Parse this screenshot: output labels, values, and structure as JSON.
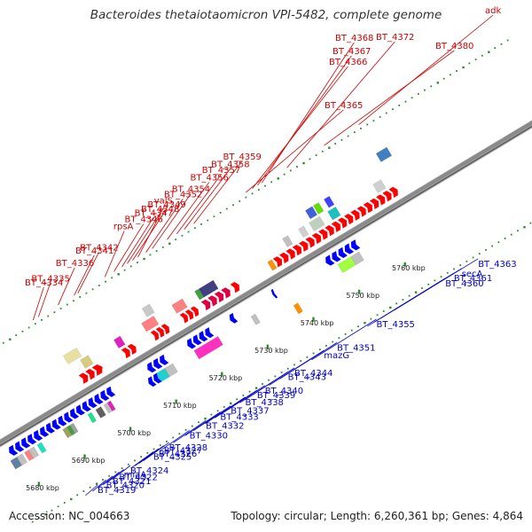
{
  "title": "Bacteroides thetaiotaomicron VPI-5482, complete genome",
  "footer": {
    "accession": "Accession: NC_004663",
    "summary": "Topology: circular; Length: 6,260,361 bp; Genes: 4,864"
  },
  "colors": {
    "forward_label": "#d00000",
    "reverse_label": "#0000c8",
    "backbone": "#8a8a8a",
    "tick": "#2f8a2f"
  },
  "kbp_ticks": [
    "5680 kbp",
    "5690 kbp",
    "5700 kbp",
    "5710 kbp",
    "5720 kbp",
    "5730 kbp",
    "5740 kbp",
    "5750 kbp",
    "5760 kbp"
  ],
  "forward_labels": [
    {
      "text": "BT_4334",
      "anchor": 0.148
    },
    {
      "text": "BT_4335",
      "anchor": 0.158
    },
    {
      "text": "BT_4336",
      "anchor": 0.195
    },
    {
      "text": "BT_4341",
      "anchor": 0.225
    },
    {
      "text": "BT_4342",
      "anchor": 0.232
    },
    {
      "text": "rpsA",
      "anchor": 0.283
    },
    {
      "text": "BT_4346",
      "anchor": 0.3
    },
    {
      "text": "BT_4347",
      "anchor": 0.315
    },
    {
      "text": "BT_4348",
      "anchor": 0.325
    },
    {
      "text": "BT_4349",
      "anchor": 0.335
    },
    {
      "text": "valS",
      "anchor": 0.345
    },
    {
      "text": "BT_4352",
      "anchor": 0.36
    },
    {
      "text": "BT_4354",
      "anchor": 0.372
    },
    {
      "text": "BT_4356",
      "anchor": 0.4
    },
    {
      "text": "BT_4357",
      "anchor": 0.418
    },
    {
      "text": "BT_4358",
      "anchor": 0.432
    },
    {
      "text": "BT_4359",
      "anchor": 0.45
    },
    {
      "text": "BT_4365",
      "anchor": 0.548
    },
    {
      "text": "BT_4366",
      "anchor": 0.56
    },
    {
      "text": "BT_4367",
      "anchor": 0.57
    },
    {
      "text": "BT_4368",
      "anchor": 0.578
    },
    {
      "text": "BT_4372",
      "anchor": 0.625
    },
    {
      "text": "BT_4380",
      "anchor": 0.695
    },
    {
      "text": "adk",
      "anchor": 0.76
    }
  ],
  "reverse_labels": [
    {
      "text": "BT_4319",
      "anchor": 0.075
    },
    {
      "text": "BT_4320",
      "anchor": 0.088
    },
    {
      "text": "BT_4321",
      "anchor": 0.098
    },
    {
      "text": "BT_4322",
      "anchor": 0.108
    },
    {
      "text": "miaA",
      "anchor": 0.115
    },
    {
      "text": "BT_4324",
      "anchor": 0.125
    },
    {
      "text": "BT_4325",
      "anchor": 0.16
    },
    {
      "text": "BT_4326",
      "anchor": 0.168
    },
    {
      "text": "BT_4327",
      "anchor": 0.176
    },
    {
      "text": "BT_4328",
      "anchor": 0.184
    },
    {
      "text": "BT_4330",
      "anchor": 0.215
    },
    {
      "text": "BT_4332",
      "anchor": 0.24
    },
    {
      "text": "BT_4333",
      "anchor": 0.262
    },
    {
      "text": "BT_4337",
      "anchor": 0.278
    },
    {
      "text": "BT_4338",
      "anchor": 0.3
    },
    {
      "text": "BT_4339",
      "anchor": 0.318
    },
    {
      "text": "BT_4340",
      "anchor": 0.33
    },
    {
      "text": "BT_4343",
      "anchor": 0.365
    },
    {
      "text": "BT_4344",
      "anchor": 0.375
    },
    {
      "text": "mazG",
      "anchor": 0.42
    },
    {
      "text": "BT_4351",
      "anchor": 0.44
    },
    {
      "text": "BT_4355",
      "anchor": 0.5
    },
    {
      "text": "BT_4360",
      "anchor": 0.605
    },
    {
      "text": "BT_4361",
      "anchor": 0.618
    },
    {
      "text": "secA",
      "anchor": 0.63
    },
    {
      "text": "BT_4363",
      "anchor": 0.655
    }
  ],
  "forward_genes": [
    {
      "s": 0.16,
      "e": 0.185,
      "color": "#e8e0a0",
      "arrow": false,
      "row": 2
    },
    {
      "s": 0.18,
      "e": 0.195,
      "color": "#d8cc80",
      "arrow": false,
      "row": 1
    },
    {
      "s": 0.165,
      "e": 0.19,
      "color": "#ff0000",
      "arrow": true,
      "row": 0
    },
    {
      "s": 0.19,
      "e": 0.205,
      "color": "#ff0000",
      "arrow": true,
      "row": 0
    },
    {
      "s": 0.243,
      "e": 0.255,
      "color": "#e020c0",
      "arrow": false,
      "row": 1
    },
    {
      "s": 0.245,
      "e": 0.268,
      "color": "#ff0000",
      "arrow": true,
      "row": 0
    },
    {
      "s": 0.295,
      "e": 0.318,
      "color": "#ff8080",
      "arrow": false,
      "row": 1
    },
    {
      "s": 0.308,
      "e": 0.322,
      "color": "#c8c8c8",
      "arrow": false,
      "row": 2
    },
    {
      "s": 0.3,
      "e": 0.33,
      "color": "#ff0000",
      "arrow": true,
      "row": 0
    },
    {
      "s": 0.352,
      "e": 0.372,
      "color": "#ff8080",
      "arrow": false,
      "row": 1
    },
    {
      "s": 0.355,
      "e": 0.385,
      "color": "#ff0000",
      "arrow": true,
      "row": 0
    },
    {
      "s": 0.395,
      "e": 0.445,
      "color": "#e00040",
      "arrow": true,
      "row": 0
    },
    {
      "s": 0.395,
      "e": 0.403,
      "color": "#40a040",
      "arrow": false,
      "row": 1
    },
    {
      "s": 0.403,
      "e": 0.43,
      "color": "#404080",
      "arrow": false,
      "row": 1
    },
    {
      "s": 0.45,
      "e": 0.462,
      "color": "#ff0000",
      "arrow": true,
      "row": 0
    },
    {
      "s": 0.52,
      "e": 0.528,
      "color": "#ff9000",
      "arrow": false,
      "row": 0
    },
    {
      "s": 0.53,
      "e": 0.64,
      "color": "#ff0000",
      "arrow": true,
      "row": 0
    },
    {
      "s": 0.56,
      "e": 0.57,
      "color": "#c0c0c0",
      "arrow": false,
      "row": 1
    },
    {
      "s": 0.59,
      "e": 0.6,
      "color": "#d0d0d0",
      "arrow": false,
      "row": 1
    },
    {
      "s": 0.61,
      "e": 0.63,
      "color": "#c0d0c0",
      "arrow": false,
      "row": 1
    },
    {
      "s": 0.615,
      "e": 0.628,
      "color": "#4060e0",
      "arrow": false,
      "row": 2
    },
    {
      "s": 0.63,
      "e": 0.64,
      "color": "#60e000",
      "arrow": false,
      "row": 2
    },
    {
      "s": 0.645,
      "e": 0.66,
      "color": "#20c0c0",
      "arrow": false,
      "row": 1
    },
    {
      "s": 0.65,
      "e": 0.66,
      "color": "#4040ff",
      "arrow": false,
      "row": 2
    },
    {
      "s": 0.64,
      "e": 0.7,
      "color": "#ff0000",
      "arrow": true,
      "row": 0
    },
    {
      "s": 0.7,
      "e": 0.76,
      "color": "#ff0000",
      "arrow": true,
      "row": 0
    },
    {
      "s": 0.73,
      "e": 0.745,
      "color": "#d0d0d0",
      "arrow": false,
      "row": 1
    },
    {
      "s": 0.76,
      "e": 0.78,
      "color": "#4080c0",
      "arrow": false,
      "row": 3
    }
  ],
  "reverse_genes": [
    {
      "s": 0.0,
      "e": 0.012,
      "color": "#6080a0",
      "arrow": false,
      "row": 1
    },
    {
      "s": 0.005,
      "e": 0.075,
      "color": "#0000ff",
      "arrow": true,
      "row": 0
    },
    {
      "s": 0.012,
      "e": 0.022,
      "color": "#c0c0c0",
      "arrow": false,
      "row": 1
    },
    {
      "s": 0.026,
      "e": 0.034,
      "color": "#ff8080",
      "arrow": false,
      "row": 1
    },
    {
      "s": 0.034,
      "e": 0.044,
      "color": "#c0c0c0",
      "arrow": false,
      "row": 1
    },
    {
      "s": 0.05,
      "e": 0.058,
      "color": "#20e0c0",
      "arrow": false,
      "row": 1
    },
    {
      "s": 0.075,
      "e": 0.12,
      "color": "#0000ff",
      "arrow": true,
      "row": 0
    },
    {
      "s": 0.098,
      "e": 0.106,
      "color": "#a0a060",
      "arrow": false,
      "row": 1
    },
    {
      "s": 0.106,
      "e": 0.112,
      "color": "#40a040",
      "arrow": false,
      "row": 1
    },
    {
      "s": 0.112,
      "e": 0.118,
      "color": "#a0a0a0",
      "arrow": false,
      "row": 1
    },
    {
      "s": 0.12,
      "e": 0.2,
      "color": "#0000ff",
      "arrow": true,
      "row": 0
    },
    {
      "s": 0.145,
      "e": 0.152,
      "color": "#20e090",
      "arrow": false,
      "row": 1
    },
    {
      "s": 0.16,
      "e": 0.17,
      "color": "#606060",
      "arrow": false,
      "row": 1
    },
    {
      "s": 0.175,
      "e": 0.182,
      "color": "#c0c0c0",
      "arrow": false,
      "row": 1
    },
    {
      "s": 0.182,
      "e": 0.188,
      "color": "#e020c0",
      "arrow": false,
      "row": 1
    },
    {
      "s": 0.265,
      "e": 0.3,
      "color": "#0000ff",
      "arrow": true,
      "row": 0
    },
    {
      "s": 0.27,
      "e": 0.29,
      "color": "#20d0d0",
      "arrow": false,
      "row": 1
    },
    {
      "s": 0.29,
      "e": 0.305,
      "color": "#c0c0c0",
      "arrow": false,
      "row": 1
    },
    {
      "s": 0.255,
      "e": 0.275,
      "color": "#0000ff",
      "arrow": true,
      "row": 1
    },
    {
      "s": 0.34,
      "e": 0.385,
      "color": "#0000ff",
      "arrow": true,
      "row": 0
    },
    {
      "s": 0.345,
      "e": 0.39,
      "color": "#ff30c0",
      "arrow": false,
      "row": 1
    },
    {
      "s": 0.42,
      "e": 0.43,
      "color": "#0000ff",
      "arrow": true,
      "row": 0
    },
    {
      "s": 0.452,
      "e": 0.46,
      "color": "#c0c0c0",
      "arrow": false,
      "row": 1
    },
    {
      "s": 0.5,
      "e": 0.505,
      "color": "#0000ff",
      "arrow": true,
      "row": 0
    },
    {
      "s": 0.52,
      "e": 0.528,
      "color": "#ff9000",
      "arrow": false,
      "row": 2
    },
    {
      "s": 0.6,
      "e": 0.66,
      "color": "#0000ff",
      "arrow": true,
      "row": 0
    },
    {
      "s": 0.615,
      "e": 0.64,
      "color": "#a0ff40",
      "arrow": false,
      "row": 1
    },
    {
      "s": 0.64,
      "e": 0.655,
      "color": "#c0c0c0",
      "arrow": false,
      "row": 1
    }
  ]
}
